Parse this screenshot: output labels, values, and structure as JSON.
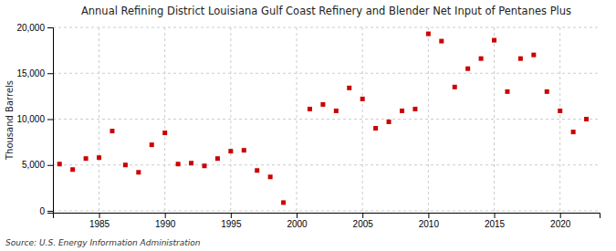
{
  "chart_data": {
    "type": "scatter",
    "title": "Annual Refining District Louisiana Gulf Coast Refinery and Blender Net Input of Pentanes Plus",
    "ylabel": "Thousand Barrels",
    "source": "Source: U.S. Energy Information Administration",
    "color": "#cc0000",
    "marker": "square",
    "grid": true,
    "xlim": [
      1981.5,
      2023
    ],
    "ylim": [
      -200,
      20000
    ],
    "xticks": [
      1985,
      1990,
      1995,
      2000,
      2005,
      2010,
      2015,
      2020
    ],
    "yticks": [
      0,
      {
        "value": 5000,
        "label": "5,000"
      },
      {
        "value": 10000,
        "label": "10,000"
      },
      {
        "value": 15000,
        "label": "15,000"
      },
      {
        "value": 20000,
        "label": "20,000"
      }
    ],
    "x": [
      1982,
      1983,
      1984,
      1985,
      1986,
      1987,
      1988,
      1989,
      1990,
      1991,
      1992,
      1993,
      1994,
      1995,
      1996,
      1997,
      1998,
      1999,
      2001,
      2002,
      2003,
      2004,
      2005,
      2006,
      2007,
      2008,
      2009,
      2010,
      2011,
      2012,
      2013,
      2014,
      2015,
      2016,
      2017,
      2018,
      2019,
      2020,
      2021,
      2022
    ],
    "values": [
      5100,
      4500,
      5700,
      5800,
      8700,
      5000,
      4200,
      7200,
      8500,
      5100,
      5200,
      4900,
      5700,
      6500,
      6600,
      4400,
      3700,
      900,
      11100,
      11600,
      10900,
      13400,
      12200,
      9000,
      9700,
      10900,
      11100,
      19300,
      18500,
      13500,
      15500,
      16600,
      18600,
      13000,
      16600,
      17000,
      13000,
      10900,
      8600,
      10000
    ]
  }
}
